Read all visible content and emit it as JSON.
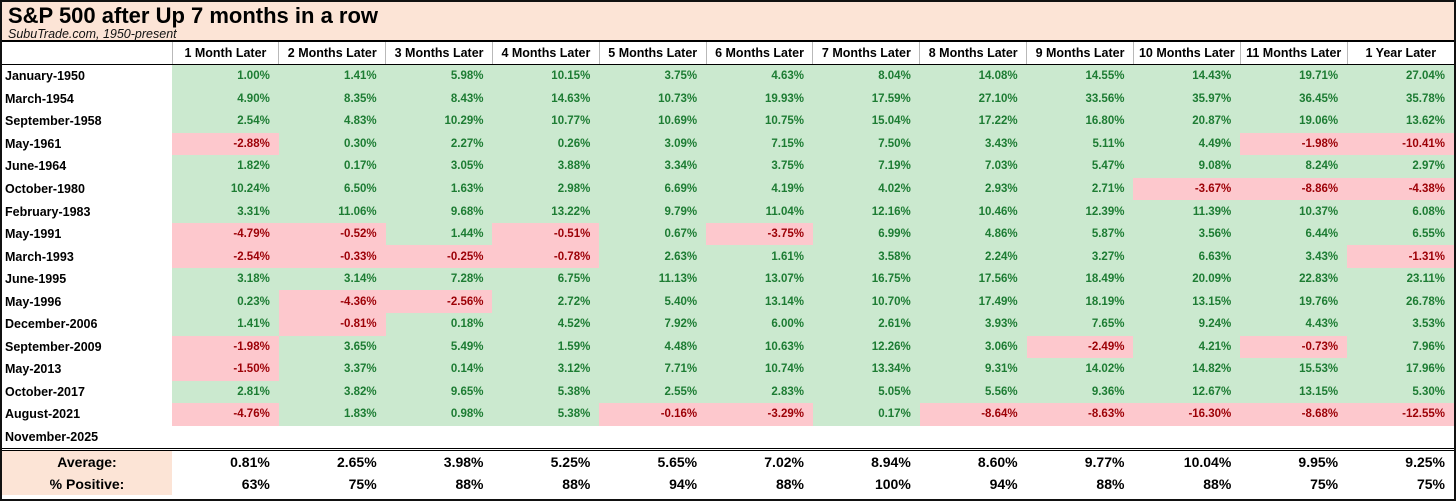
{
  "colors": {
    "positive_bg": "#cbe9cf",
    "positive_text": "#1d7c33",
    "negative_bg": "#fdc8cd",
    "negative_text": "#9c0006",
    "band_bg": "#fce4d6"
  },
  "chart_data": {
    "type": "table",
    "title": "S&P 500 after Up 7 months in a row",
    "subtitle": "SubuTrade.com, 1950-present",
    "columns": [
      "",
      "1 Month Later",
      "2 Months Later",
      "3 Months Later",
      "4 Months Later",
      "5 Months Later",
      "6 Months Later",
      "7 Months Later",
      "8 Months Later",
      "9 Months Later",
      "10 Months Later",
      "11 Months Later",
      "1 Year Later"
    ],
    "rows": [
      {
        "label": "January-1950",
        "values": [
          "1.00%",
          "1.41%",
          "5.98%",
          "10.15%",
          "3.75%",
          "4.63%",
          "8.04%",
          "14.08%",
          "14.55%",
          "14.43%",
          "19.71%",
          "27.04%"
        ]
      },
      {
        "label": "March-1954",
        "values": [
          "4.90%",
          "8.35%",
          "8.43%",
          "14.63%",
          "10.73%",
          "19.93%",
          "17.59%",
          "27.10%",
          "33.56%",
          "35.97%",
          "36.45%",
          "35.78%"
        ]
      },
      {
        "label": "September-1958",
        "values": [
          "2.54%",
          "4.83%",
          "10.29%",
          "10.77%",
          "10.69%",
          "10.75%",
          "15.04%",
          "17.22%",
          "16.80%",
          "20.87%",
          "19.06%",
          "13.62%"
        ]
      },
      {
        "label": "May-1961",
        "values": [
          "-2.88%",
          "0.30%",
          "2.27%",
          "0.26%",
          "3.09%",
          "7.15%",
          "7.50%",
          "3.43%",
          "5.11%",
          "4.49%",
          "-1.98%",
          "-10.41%"
        ]
      },
      {
        "label": "June-1964",
        "values": [
          "1.82%",
          "0.17%",
          "3.05%",
          "3.88%",
          "3.34%",
          "3.75%",
          "7.19%",
          "7.03%",
          "5.47%",
          "9.08%",
          "8.24%",
          "2.97%"
        ]
      },
      {
        "label": "October-1980",
        "values": [
          "10.24%",
          "6.50%",
          "1.63%",
          "2.98%",
          "6.69%",
          "4.19%",
          "4.02%",
          "2.93%",
          "2.71%",
          "-3.67%",
          "-8.86%",
          "-4.38%"
        ]
      },
      {
        "label": "February-1983",
        "values": [
          "3.31%",
          "11.06%",
          "9.68%",
          "13.22%",
          "9.79%",
          "11.04%",
          "12.16%",
          "10.46%",
          "12.39%",
          "11.39%",
          "10.37%",
          "6.08%"
        ]
      },
      {
        "label": "May-1991",
        "values": [
          "-4.79%",
          "-0.52%",
          "1.44%",
          "-0.51%",
          "0.67%",
          "-3.75%",
          "6.99%",
          "4.86%",
          "5.87%",
          "3.56%",
          "6.44%",
          "6.55%"
        ]
      },
      {
        "label": "March-1993",
        "values": [
          "-2.54%",
          "-0.33%",
          "-0.25%",
          "-0.78%",
          "2.63%",
          "1.61%",
          "3.58%",
          "2.24%",
          "3.27%",
          "6.63%",
          "3.43%",
          "-1.31%"
        ]
      },
      {
        "label": "June-1995",
        "values": [
          "3.18%",
          "3.14%",
          "7.28%",
          "6.75%",
          "11.13%",
          "13.07%",
          "16.75%",
          "17.56%",
          "18.49%",
          "20.09%",
          "22.83%",
          "23.11%"
        ]
      },
      {
        "label": "May-1996",
        "values": [
          "0.23%",
          "-4.36%",
          "-2.56%",
          "2.72%",
          "5.40%",
          "13.14%",
          "10.70%",
          "17.49%",
          "18.19%",
          "13.15%",
          "19.76%",
          "26.78%"
        ]
      },
      {
        "label": "December-2006",
        "values": [
          "1.41%",
          "-0.81%",
          "0.18%",
          "4.52%",
          "7.92%",
          "6.00%",
          "2.61%",
          "3.93%",
          "7.65%",
          "9.24%",
          "4.43%",
          "3.53%"
        ]
      },
      {
        "label": "September-2009",
        "values": [
          "-1.98%",
          "3.65%",
          "5.49%",
          "1.59%",
          "4.48%",
          "10.63%",
          "12.26%",
          "3.06%",
          "-2.49%",
          "4.21%",
          "-0.73%",
          "7.96%"
        ]
      },
      {
        "label": "May-2013",
        "values": [
          "-1.50%",
          "3.37%",
          "0.14%",
          "3.12%",
          "7.71%",
          "10.74%",
          "13.34%",
          "9.31%",
          "14.02%",
          "14.82%",
          "15.53%",
          "17.96%"
        ]
      },
      {
        "label": "October-2017",
        "values": [
          "2.81%",
          "3.82%",
          "9.65%",
          "5.38%",
          "2.55%",
          "2.83%",
          "5.05%",
          "5.56%",
          "9.36%",
          "12.67%",
          "13.15%",
          "5.30%"
        ]
      },
      {
        "label": "August-2021",
        "values": [
          "-4.76%",
          "1.83%",
          "0.98%",
          "5.38%",
          "-0.16%",
          "-3.29%",
          "0.17%",
          "-8.64%",
          "-8.63%",
          "-16.30%",
          "-8.68%",
          "-12.55%"
        ]
      },
      {
        "label": "November-2025",
        "values": [
          "",
          "",
          "",
          "",
          "",
          "",
          "",
          "",
          "",
          "",
          "",
          ""
        ]
      }
    ],
    "summary_rows": [
      {
        "label": "Average:",
        "values": [
          "0.81%",
          "2.65%",
          "3.98%",
          "5.25%",
          "5.65%",
          "7.02%",
          "8.94%",
          "8.60%",
          "9.77%",
          "10.04%",
          "9.95%",
          "9.25%"
        ]
      },
      {
        "label": "% Positive:",
        "values": [
          "63%",
          "75%",
          "88%",
          "88%",
          "94%",
          "88%",
          "100%",
          "94%",
          "88%",
          "88%",
          "75%",
          "75%"
        ]
      }
    ]
  }
}
